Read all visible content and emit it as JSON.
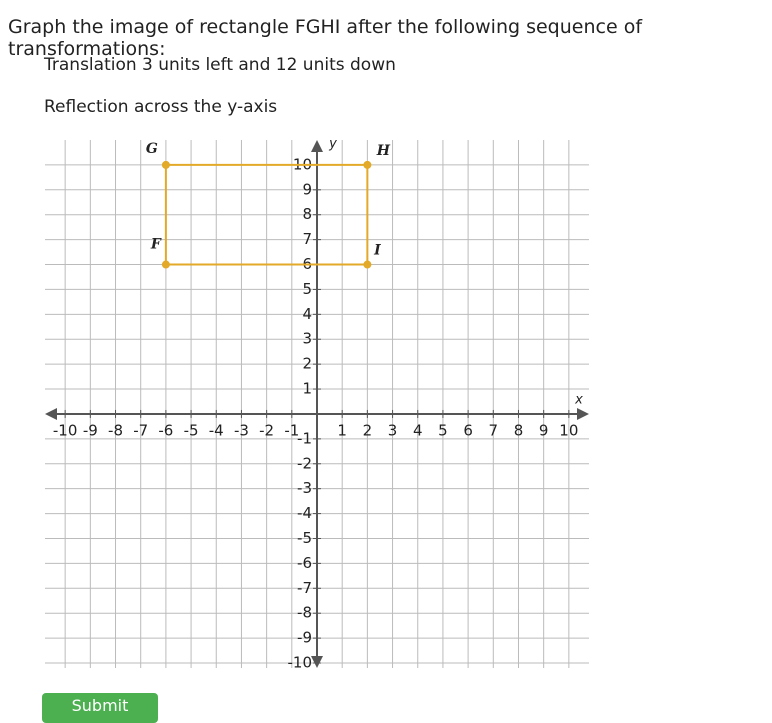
{
  "question": "Graph the image of rectangle FGHI after the following sequence of transformations:",
  "steps": [
    "Translation 3 units left and 12 units down",
    "Reflection across the y-axis"
  ],
  "chart_data": {
    "type": "polygon",
    "x_label": "x",
    "y_label": "y",
    "labels": [
      "F",
      "G",
      "H",
      "I"
    ],
    "x": [
      -6,
      -6,
      2,
      2
    ],
    "y": [
      6,
      10,
      10,
      6
    ],
    "color": "#e3a928",
    "xlim": [
      -10.8,
      10.8
    ],
    "ylim": [
      -10.2,
      11
    ],
    "xticks": [
      -10,
      -9,
      -8,
      -7,
      -6,
      -5,
      -4,
      -3,
      -2,
      -1,
      1,
      2,
      3,
      4,
      5,
      6,
      7,
      8,
      9,
      10
    ],
    "yticks": [
      -10,
      -9,
      -8,
      -7,
      -6,
      -5,
      -4,
      -3,
      -2,
      -1,
      1,
      2,
      3,
      4,
      5,
      6,
      7,
      8,
      9,
      10
    ],
    "grid": true
  },
  "submit": "Submit"
}
